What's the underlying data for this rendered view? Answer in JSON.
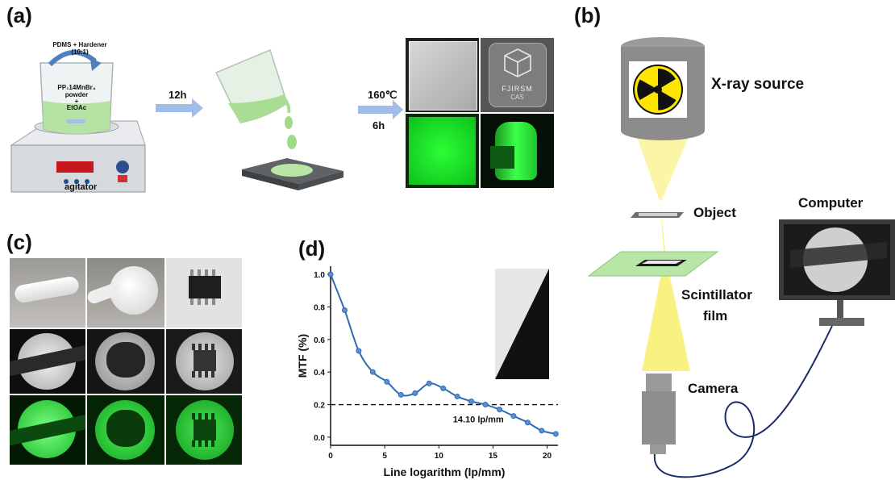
{
  "panels": {
    "a": "(a)",
    "b": "(b)",
    "c": "(c)",
    "d": "(d)"
  },
  "panel_a": {
    "reagent_title": "PDMS + Hardener",
    "reagent_ratio": "(10:1)",
    "beaker_line1": "PP₁14MnBr₄",
    "beaker_line2": "powder",
    "beaker_line3": "+",
    "beaker_line4": "EtOAc",
    "agitator_label": "agitator",
    "step1_label": "12h",
    "step2_temp": "160℃",
    "step2_time": "6h",
    "film_logo_line1": "FJIRSM",
    "film_logo_line2": "CAS"
  },
  "panel_b": {
    "xray_source": "X-ray source",
    "object": "Object",
    "scintillator_line1": "Scintillator",
    "scintillator_line2": "film",
    "camera": "Camera",
    "computer": "Computer"
  },
  "chart_data": {
    "type": "line",
    "xlabel": "Line logarithm (lp/mm)",
    "ylabel": "MTF (%)",
    "xlim": [
      0,
      21
    ],
    "ylim": [
      -0.05,
      1.05
    ],
    "x_ticks": [
      0,
      5,
      10,
      15,
      20
    ],
    "y_ticks": [
      0.0,
      0.2,
      0.4,
      0.6,
      0.8,
      1.0
    ],
    "x_tick_labels": [
      "0",
      "5",
      "10",
      "15",
      "20"
    ],
    "y_tick_labels": [
      "0.0",
      "0.2",
      "0.4",
      "0.6",
      "0.8",
      "1.0"
    ],
    "grid": false,
    "series": [
      {
        "name": "",
        "color": "#2e6bb5",
        "x": [
          0,
          1.3,
          2.6,
          3.9,
          5.2,
          6.5,
          7.8,
          9.1,
          10.4,
          11.7,
          13.0,
          14.3,
          15.6,
          16.9,
          18.2,
          19.5,
          20.8
        ],
        "y": [
          1.0,
          0.78,
          0.53,
          0.4,
          0.34,
          0.26,
          0.27,
          0.33,
          0.3,
          0.25,
          0.22,
          0.2,
          0.17,
          0.13,
          0.09,
          0.04,
          0.02
        ]
      }
    ],
    "threshold": {
      "y": 0.2,
      "style": "dashed",
      "color": "#111111"
    },
    "annotation": "14.10 lp/mm"
  },
  "colors": {
    "green": "#1bd12b",
    "beam": "#f7f06a",
    "film": "#b7e6a6",
    "arrow": "#9fbde6",
    "curve": "#2e6bb5"
  }
}
